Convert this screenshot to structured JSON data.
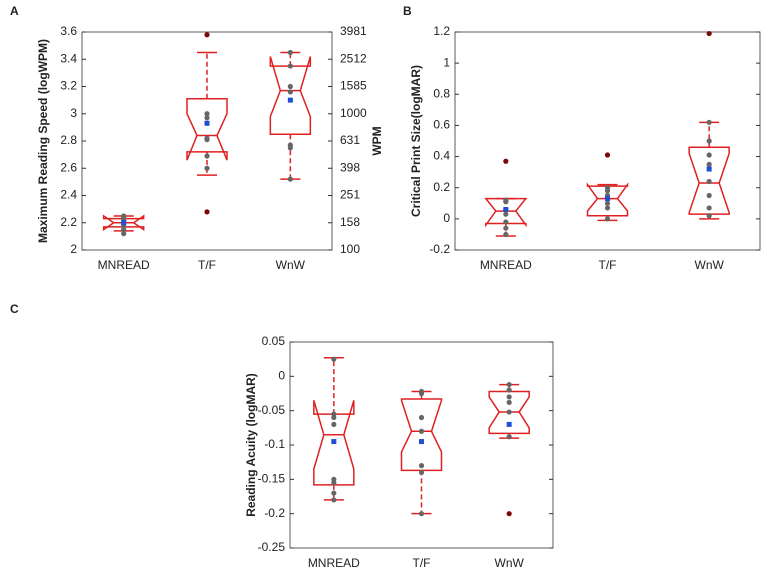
{
  "chart_data": [
    {
      "type": "box",
      "panel": "A",
      "ylabel": "Maximum Reading Speed (logWPM)",
      "y2label": "WPM",
      "categories": [
        "MNREAD",
        "T/F",
        "WnW"
      ],
      "ylim": [
        2,
        3.6
      ],
      "yticks": [
        2,
        2.2,
        2.4,
        2.6,
        2.8,
        3,
        3.2,
        3.4,
        3.6
      ],
      "y2lim": [
        100,
        3981
      ],
      "y2ticks": [
        100,
        158,
        251,
        398,
        631,
        1000,
        1585,
        2512,
        3981
      ],
      "y2log": true,
      "box_color": "#e02020",
      "point_color": "#666666",
      "outlier_color": "#7a0a0a",
      "mean_color": "#1f4fd6",
      "groups": [
        {
          "whisker_low": 2.14,
          "q1": 2.17,
          "median": 2.2,
          "q3": 2.23,
          "whisker_high": 2.25,
          "notch_low": 2.15,
          "notch_high": 2.25,
          "mean": 2.2,
          "points": [
            2.12,
            2.15,
            2.18,
            2.2,
            2.22,
            2.24,
            2.25
          ],
          "outliers": []
        },
        {
          "whisker_low": 2.55,
          "q1": 2.72,
          "median": 2.84,
          "q3": 3.11,
          "whisker_high": 3.45,
          "notch_low": 2.66,
          "notch_high": 3.0,
          "mean": 2.93,
          "points": [
            3.0,
            2.97,
            2.82,
            2.81,
            2.69,
            2.6
          ],
          "outliers": [
            3.58,
            2.28
          ]
        },
        {
          "whisker_low": 2.52,
          "q1": 2.85,
          "median": 3.17,
          "q3": 3.35,
          "whisker_high": 3.45,
          "notch_low": 2.98,
          "notch_high": 3.42,
          "mean": 3.1,
          "points": [
            3.45,
            3.35,
            3.2,
            3.16,
            2.77,
            2.75,
            2.52
          ],
          "outliers": []
        }
      ]
    },
    {
      "type": "box",
      "panel": "B",
      "ylabel": "Critical Print Size(logMAR)",
      "categories": [
        "MNREAD",
        "T/F",
        "WnW"
      ],
      "ylim": [
        -0.2,
        1.2
      ],
      "yticks": [
        -0.2,
        0,
        0.2,
        0.4,
        0.6,
        0.8,
        1,
        1.2
      ],
      "box_color": "#e02020",
      "point_color": "#666666",
      "outlier_color": "#7a0a0a",
      "mean_color": "#1f4fd6",
      "groups": [
        {
          "whisker_low": -0.11,
          "q1": -0.03,
          "median": 0.05,
          "q3": 0.13,
          "whisker_high": 0.13,
          "notch_low": -0.04,
          "notch_high": 0.13,
          "mean": 0.06,
          "points": [
            0.12,
            0.11,
            0.06,
            0.03,
            -0.02,
            -0.06,
            -0.1
          ],
          "outliers": [
            0.37
          ]
        },
        {
          "whisker_low": -0.01,
          "q1": 0.02,
          "median": 0.13,
          "q3": 0.21,
          "whisker_high": 0.22,
          "notch_low": 0.05,
          "notch_high": 0.22,
          "mean": 0.13,
          "points": [
            0.2,
            0.18,
            0.15,
            0.1,
            0.07,
            0.0
          ],
          "outliers": [
            0.41
          ]
        },
        {
          "whisker_low": 0.0,
          "q1": 0.03,
          "median": 0.23,
          "q3": 0.46,
          "whisker_high": 0.62,
          "notch_low": 0.04,
          "notch_high": 0.42,
          "mean": 0.32,
          "points": [
            0.62,
            0.5,
            0.41,
            0.35,
            0.24,
            0.15,
            0.07,
            0.02
          ],
          "outliers": [
            1.19
          ]
        }
      ]
    },
    {
      "type": "box",
      "panel": "C",
      "ylabel": "Reading Acuity (logMAR)",
      "categories": [
        "MNREAD",
        "T/F",
        "WnW"
      ],
      "ylim": [
        -0.25,
        0.05
      ],
      "yticks": [
        -0.25,
        -0.2,
        -0.15,
        -0.1,
        -0.05,
        0,
        0.05
      ],
      "box_color": "#e02020",
      "point_color": "#666666",
      "outlier_color": "#7a0a0a",
      "mean_color": "#1f4fd6",
      "groups": [
        {
          "whisker_low": -0.18,
          "q1": -0.158,
          "median": -0.085,
          "q3": -0.055,
          "whisker_high": 0.027,
          "notch_low": -0.135,
          "notch_high": -0.035,
          "mean": -0.095,
          "points": [
            0.025,
            -0.055,
            -0.06,
            -0.07,
            -0.15,
            -0.155,
            -0.17,
            -0.18
          ],
          "outliers": []
        },
        {
          "whisker_low": -0.2,
          "q1": -0.137,
          "median": -0.08,
          "q3": -0.033,
          "whisker_high": -0.022,
          "notch_low": -0.11,
          "notch_high": -0.035,
          "mean": -0.095,
          "points": [
            -0.022,
            -0.025,
            -0.06,
            -0.08,
            -0.13,
            -0.14,
            -0.2
          ],
          "outliers": []
        },
        {
          "whisker_low": -0.09,
          "q1": -0.083,
          "median": -0.052,
          "q3": -0.022,
          "whisker_high": -0.012,
          "notch_low": -0.075,
          "notch_high": -0.03,
          "mean": -0.07,
          "points": [
            -0.012,
            -0.02,
            -0.03,
            -0.038,
            -0.052,
            -0.088
          ],
          "outliers": [
            -0.2
          ]
        }
      ]
    }
  ]
}
